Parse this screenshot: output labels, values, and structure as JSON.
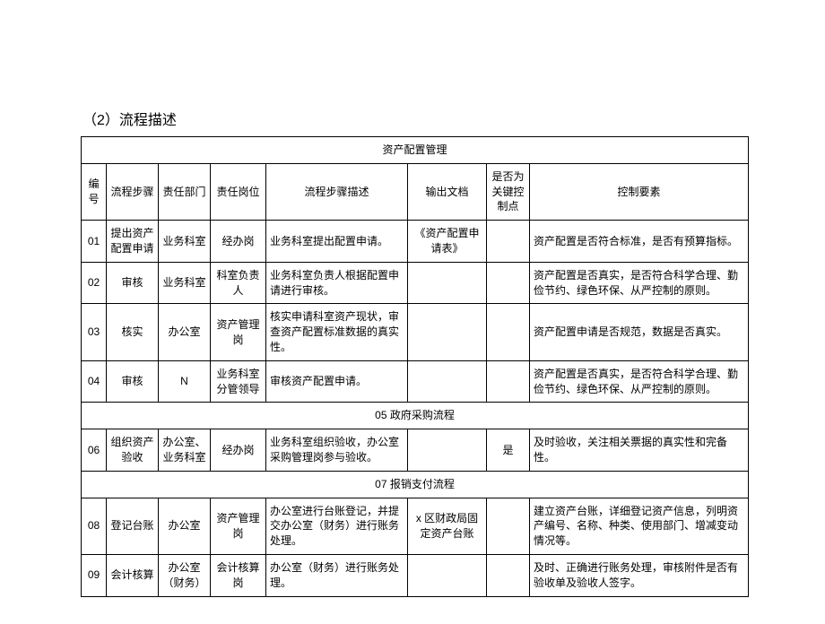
{
  "page": {
    "section_title": "（2）流程描述",
    "table_title": "资产配置管理",
    "headers": {
      "num": "编号",
      "step": "流程步骤",
      "dept": "责任部门",
      "role": "责任岗位",
      "desc": "流程步骤描述",
      "output": "输出文档",
      "key": "是否为关键控制点",
      "ctrl": "控制要素"
    },
    "rows": {
      "r01": {
        "num": "01",
        "step": "提出资产配置申请",
        "dept": "业务科室",
        "role": "经办岗",
        "desc": "业务科室提出配置申请。",
        "output": "《资产配置申请表》",
        "key": "",
        "ctrl": "资产配置是否符合标准，是否有预算指标。"
      },
      "r02": {
        "num": "02",
        "step": "审核",
        "dept": "业务科室",
        "role": "科室负责人",
        "desc": "业务科室负责人根据配置申请进行审核。",
        "output": "",
        "key": "",
        "ctrl": "资产配置是否真实，是否符合科学合理、勤俭节约、绿色环保、从严控制的原则。"
      },
      "r03": {
        "num": "03",
        "step": "核实",
        "dept": "办公室",
        "role": "资产管理岗",
        "desc": "核实申请科室资产现状，审查资产配置标准数据的真实性。",
        "output": "",
        "key": "",
        "ctrl": "资产配置申请是否规范，数据是否真实。"
      },
      "r04": {
        "num": "04",
        "step": "审核",
        "dept": "N",
        "role": "业务科室分管领导",
        "desc": "审核资产配置申请。",
        "output": "",
        "key": "",
        "ctrl": "资产配置是否真实，是否符合科学合理、勤俭节约、绿色环保、从严控制的原则。"
      },
      "sub1": "05 政府采购流程",
      "r06": {
        "num": "06",
        "step": "组织资产验收",
        "dept": "办公室、业务科室",
        "role": "经办岗",
        "desc": "业务科室组织验收，办公室采购管理岗参与验收。",
        "output": "",
        "key": "是",
        "ctrl": "及时验收，关注相关票据的真实性和完备性。"
      },
      "sub2": "07 报销支付流程",
      "r08": {
        "num": "08",
        "step": "登记台账",
        "dept": "办公室",
        "role": "资产管理岗",
        "desc": "办公室进行台账登记，并提交办公室（财务）进行账务处理。",
        "output": "x 区财政局固定资产台账",
        "key": "",
        "ctrl": "建立资产台账，详细登记资产信息，列明资产编号、名称、种类、使用部门、增减变动情况等。"
      },
      "r09": {
        "num": "09",
        "step": "会计核算",
        "dept": "办公室（财务）",
        "role": "会计核算岗",
        "desc": "办公室（财务）进行账务处理。",
        "output": "",
        "key": "",
        "ctrl": "及时、正确进行账务处理，审核附件是否有验收单及验收人签字。"
      }
    }
  }
}
